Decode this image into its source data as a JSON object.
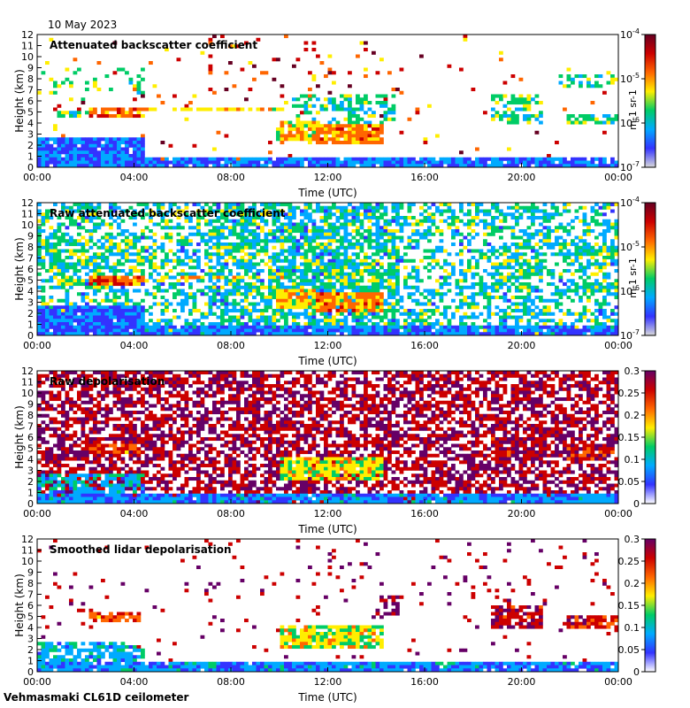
{
  "header": {
    "date": "10 May 2023",
    "footer": "Vehmasmaki CL61D ceilometer"
  },
  "colormap_backscatter": [
    "#d9d9d9",
    "#3333ff",
    "#00aaff",
    "#00cc66",
    "#ffee00",
    "#ff6600",
    "#cc0000",
    "#660022"
  ],
  "colormap_depol": [
    "#ffffff",
    "#3333ff",
    "#00aaff",
    "#00cc66",
    "#ffee00",
    "#ff6600",
    "#cc0000",
    "#660066"
  ],
  "chart_data": [
    {
      "type": "heatmap",
      "title": "Attenuated backscatter coefficient",
      "xlabel": "Time (UTC)",
      "ylabel": "Height (km)",
      "x_ticks": [
        "00:00",
        "04:00",
        "08:00",
        "12:00",
        "16:00",
        "20:00",
        "00:00"
      ],
      "y_ticks": [
        "0",
        "1",
        "2",
        "3",
        "4",
        "5",
        "6",
        "7",
        "8",
        "9",
        "10",
        "11",
        "12"
      ],
      "ylim": [
        0,
        12
      ],
      "colorbar": {
        "scale": "log",
        "range": [
          1e-07,
          0.0001
        ],
        "ticks": [
          "10-7",
          "10-6",
          "10-5",
          "10-4"
        ],
        "label": "m-1 sr-1"
      }
    },
    {
      "type": "heatmap",
      "title": "Raw attenuated backscatter coefficient",
      "xlabel": "Time (UTC)",
      "ylabel": "Height (km)",
      "x_ticks": [
        "00:00",
        "04:00",
        "08:00",
        "12:00",
        "16:00",
        "20:00",
        "00:00"
      ],
      "y_ticks": [
        "0",
        "1",
        "2",
        "3",
        "4",
        "5",
        "6",
        "7",
        "8",
        "9",
        "10",
        "11",
        "12"
      ],
      "ylim": [
        0,
        12
      ],
      "colorbar": {
        "scale": "log",
        "range": [
          1e-07,
          0.0001
        ],
        "ticks": [
          "10-7",
          "10-6",
          "10-5",
          "10-4"
        ],
        "label": "m-1 sr-1"
      }
    },
    {
      "type": "heatmap",
      "title": "Raw depolarisation",
      "xlabel": "Time (UTC)",
      "ylabel": "Height (km)",
      "x_ticks": [
        "00:00",
        "04:00",
        "08:00",
        "12:00",
        "16:00",
        "20:00",
        "00:00"
      ],
      "y_ticks": [
        "0",
        "1",
        "2",
        "3",
        "4",
        "5",
        "6",
        "7",
        "8",
        "9",
        "10",
        "11",
        "12"
      ],
      "ylim": [
        0,
        12
      ],
      "colorbar": {
        "scale": "linear",
        "range": [
          0,
          0.3
        ],
        "ticks": [
          "0",
          "0.05",
          "0.1",
          "0.15",
          "0.2",
          "0.25",
          "0.3"
        ],
        "label": ""
      }
    },
    {
      "type": "heatmap",
      "title": "Smoothed lidar depolarisation",
      "xlabel": "Time (UTC)",
      "ylabel": "Height (km)",
      "x_ticks": [
        "00:00",
        "04:00",
        "08:00",
        "12:00",
        "16:00",
        "20:00",
        "00:00"
      ],
      "y_ticks": [
        "0",
        "1",
        "2",
        "3",
        "4",
        "5",
        "6",
        "7",
        "8",
        "9",
        "10",
        "11",
        "12"
      ],
      "ylim": [
        0,
        12
      ],
      "colorbar": {
        "scale": "linear",
        "range": [
          0,
          0.3
        ],
        "ticks": [
          "0",
          "0.05",
          "0.1",
          "0.15",
          "0.2",
          "0.25",
          "0.3"
        ],
        "label": ""
      }
    }
  ]
}
